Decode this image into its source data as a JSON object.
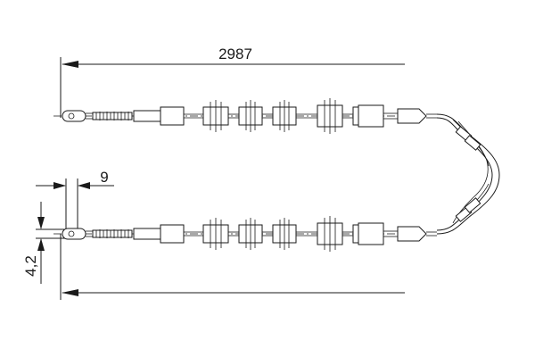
{
  "drawing": {
    "length_label": "2987",
    "eye_width_label": "9",
    "eye_diameter_label": "4,2"
  }
}
